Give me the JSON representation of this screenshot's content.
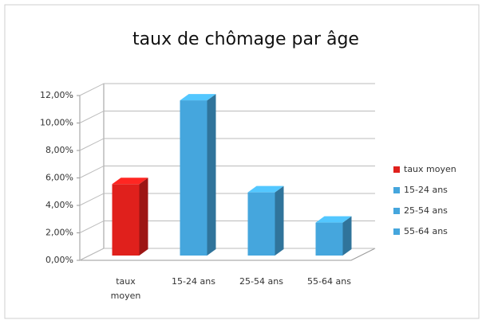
{
  "chart_data": {
    "type": "bar3d",
    "title": "taux de chômage par âge",
    "categories": [
      "taux moyen",
      "15-24 ans",
      "25-54 ans",
      "55-64 ans"
    ],
    "values": [
      5.2,
      11.3,
      4.6,
      2.4
    ],
    "colors": [
      "#e0201c",
      "#45a6dd",
      "#45a6dd",
      "#45a6dd"
    ],
    "ylim": [
      0,
      12
    ],
    "yticks": [
      {
        "value": 0,
        "label": "0,00%"
      },
      {
        "value": 2,
        "label": "2,00%"
      },
      {
        "value": 4,
        "label": "4,00%"
      },
      {
        "value": 6,
        "label": "6,00%"
      },
      {
        "value": 8,
        "label": "8,00%"
      },
      {
        "value": 10,
        "label": "10,00%"
      },
      {
        "value": 12,
        "label": "12,00%"
      }
    ],
    "grid": true,
    "legend": "right"
  }
}
